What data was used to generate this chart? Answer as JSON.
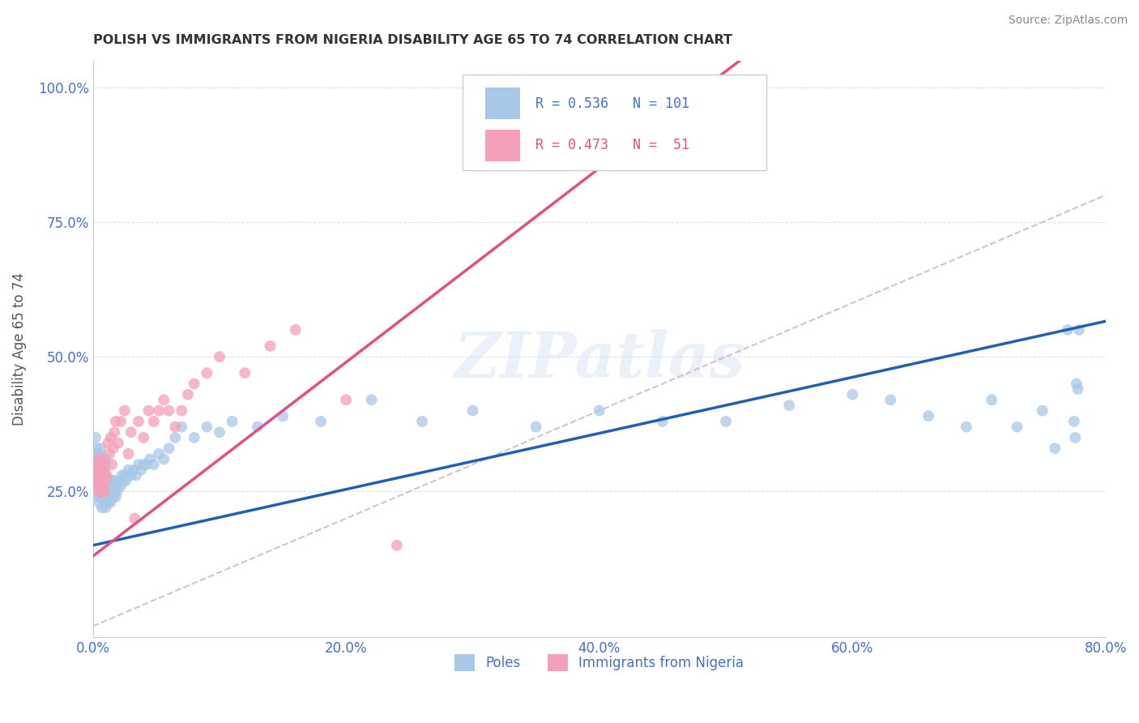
{
  "title": "POLISH VS IMMIGRANTS FROM NIGERIA DISABILITY AGE 65 TO 74 CORRELATION CHART",
  "source": "Source: ZipAtlas.com",
  "ylabel": "Disability Age 65 to 74",
  "xlim": [
    0.0,
    0.8
  ],
  "ylim": [
    -0.02,
    1.05
  ],
  "xticks": [
    0.0,
    0.2,
    0.4,
    0.6,
    0.8
  ],
  "yticks": [
    0.25,
    0.5,
    0.75,
    1.0
  ],
  "xtick_labels": [
    "0.0%",
    "20.0%",
    "40.0%",
    "60.0%",
    "80.0%"
  ],
  "ytick_labels": [
    "25.0%",
    "50.0%",
    "75.0%",
    "100.0%"
  ],
  "blue_color": "#a8c8e8",
  "pink_color": "#f4a0b8",
  "blue_line_color": "#2060b0",
  "pink_line_color": "#e05080",
  "diag_color": "#d0b0c0",
  "axis_color": "#4472c4",
  "watermark": "ZIPatlas",
  "legend_r_blue": "0.536",
  "legend_n_blue": "101",
  "legend_r_pink": "0.473",
  "legend_n_pink": "51",
  "poles_label": "Poles",
  "nigeria_label": "Immigrants from Nigeria",
  "blue_slope": 0.52,
  "blue_intercept": 0.15,
  "pink_slope": 1.8,
  "pink_intercept": 0.13,
  "poles_x": [
    0.001,
    0.001,
    0.002,
    0.002,
    0.002,
    0.003,
    0.003,
    0.003,
    0.003,
    0.004,
    0.004,
    0.004,
    0.005,
    0.005,
    0.005,
    0.005,
    0.006,
    0.006,
    0.006,
    0.006,
    0.007,
    0.007,
    0.007,
    0.007,
    0.008,
    0.008,
    0.008,
    0.009,
    0.009,
    0.009,
    0.01,
    0.01,
    0.01,
    0.01,
    0.011,
    0.011,
    0.012,
    0.012,
    0.013,
    0.013,
    0.014,
    0.014,
    0.015,
    0.015,
    0.016,
    0.016,
    0.017,
    0.018,
    0.018,
    0.019,
    0.02,
    0.021,
    0.022,
    0.023,
    0.024,
    0.025,
    0.026,
    0.028,
    0.03,
    0.032,
    0.034,
    0.036,
    0.038,
    0.04,
    0.042,
    0.045,
    0.048,
    0.052,
    0.056,
    0.06,
    0.065,
    0.07,
    0.08,
    0.09,
    0.1,
    0.11,
    0.13,
    0.15,
    0.18,
    0.22,
    0.26,
    0.3,
    0.35,
    0.4,
    0.45,
    0.5,
    0.55,
    0.6,
    0.63,
    0.66,
    0.69,
    0.71,
    0.73,
    0.75,
    0.76,
    0.77,
    0.775,
    0.776,
    0.777,
    0.778,
    0.779
  ],
  "poles_y": [
    0.28,
    0.3,
    0.27,
    0.32,
    0.35,
    0.25,
    0.28,
    0.3,
    0.33,
    0.24,
    0.27,
    0.31,
    0.23,
    0.26,
    0.29,
    0.32,
    0.24,
    0.27,
    0.3,
    0.33,
    0.22,
    0.25,
    0.28,
    0.31,
    0.24,
    0.27,
    0.3,
    0.23,
    0.26,
    0.29,
    0.22,
    0.25,
    0.28,
    0.31,
    0.24,
    0.27,
    0.23,
    0.26,
    0.24,
    0.27,
    0.23,
    0.26,
    0.24,
    0.27,
    0.24,
    0.27,
    0.25,
    0.24,
    0.27,
    0.25,
    0.26,
    0.27,
    0.26,
    0.28,
    0.27,
    0.28,
    0.27,
    0.29,
    0.28,
    0.29,
    0.28,
    0.3,
    0.29,
    0.3,
    0.3,
    0.31,
    0.3,
    0.32,
    0.31,
    0.33,
    0.35,
    0.37,
    0.35,
    0.37,
    0.36,
    0.38,
    0.37,
    0.39,
    0.38,
    0.42,
    0.38,
    0.4,
    0.37,
    0.4,
    0.38,
    0.38,
    0.41,
    0.43,
    0.42,
    0.39,
    0.37,
    0.42,
    0.37,
    0.4,
    0.33,
    0.55,
    0.38,
    0.35,
    0.45,
    0.44,
    0.55
  ],
  "nigeria_x": [
    0.001,
    0.002,
    0.002,
    0.003,
    0.003,
    0.004,
    0.004,
    0.005,
    0.005,
    0.006,
    0.006,
    0.007,
    0.007,
    0.008,
    0.008,
    0.009,
    0.009,
    0.01,
    0.01,
    0.011,
    0.012,
    0.013,
    0.014,
    0.015,
    0.016,
    0.017,
    0.018,
    0.02,
    0.022,
    0.025,
    0.028,
    0.03,
    0.033,
    0.036,
    0.04,
    0.044,
    0.048,
    0.052,
    0.056,
    0.06,
    0.065,
    0.07,
    0.075,
    0.08,
    0.09,
    0.1,
    0.12,
    0.14,
    0.16,
    0.2,
    0.24
  ],
  "nigeria_y": [
    0.28,
    0.27,
    0.3,
    0.26,
    0.29,
    0.27,
    0.31,
    0.25,
    0.29,
    0.26,
    0.3,
    0.25,
    0.29,
    0.27,
    0.31,
    0.25,
    0.28,
    0.27,
    0.3,
    0.28,
    0.34,
    0.32,
    0.35,
    0.3,
    0.33,
    0.36,
    0.38,
    0.34,
    0.38,
    0.4,
    0.32,
    0.36,
    0.2,
    0.38,
    0.35,
    0.4,
    0.38,
    0.4,
    0.42,
    0.4,
    0.37,
    0.4,
    0.43,
    0.45,
    0.47,
    0.5,
    0.47,
    0.52,
    0.55,
    0.42,
    0.15
  ]
}
